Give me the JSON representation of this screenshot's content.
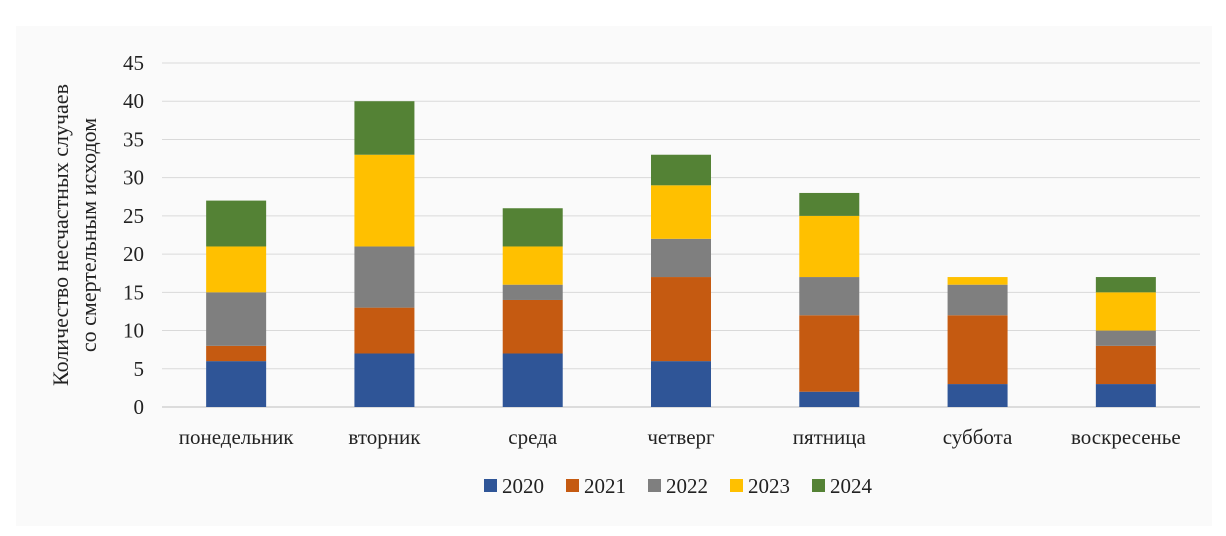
{
  "chart_data": {
    "type": "bar",
    "stacked": true,
    "title": "",
    "xlabel": "",
    "ylabel_lines": [
      "Количество несчастных случаев",
      "со смертельным исходом"
    ],
    "ylim": [
      0,
      45
    ],
    "yticks": [
      0,
      5,
      10,
      15,
      20,
      25,
      30,
      35,
      40,
      45
    ],
    "grid": true,
    "legend_position": "bottom",
    "categories": [
      "понедельник",
      "вторник",
      "среда",
      "четверг",
      "пятница",
      "суббота",
      "воскресенье"
    ],
    "series": [
      {
        "name": "2020",
        "color": "#2f5597",
        "values": [
          6,
          7,
          7,
          6,
          2,
          3,
          3
        ]
      },
      {
        "name": "2021",
        "color": "#c55a11",
        "values": [
          2,
          6,
          7,
          11,
          10,
          9,
          5
        ]
      },
      {
        "name": "2022",
        "color": "#7f7f7f",
        "values": [
          7,
          8,
          2,
          5,
          5,
          4,
          2
        ]
      },
      {
        "name": "2023",
        "color": "#ffc000",
        "values": [
          6,
          12,
          5,
          7,
          8,
          1,
          5
        ]
      },
      {
        "name": "2024",
        "color": "#548235",
        "values": [
          6,
          7,
          5,
          4,
          3,
          0,
          2
        ]
      }
    ]
  }
}
